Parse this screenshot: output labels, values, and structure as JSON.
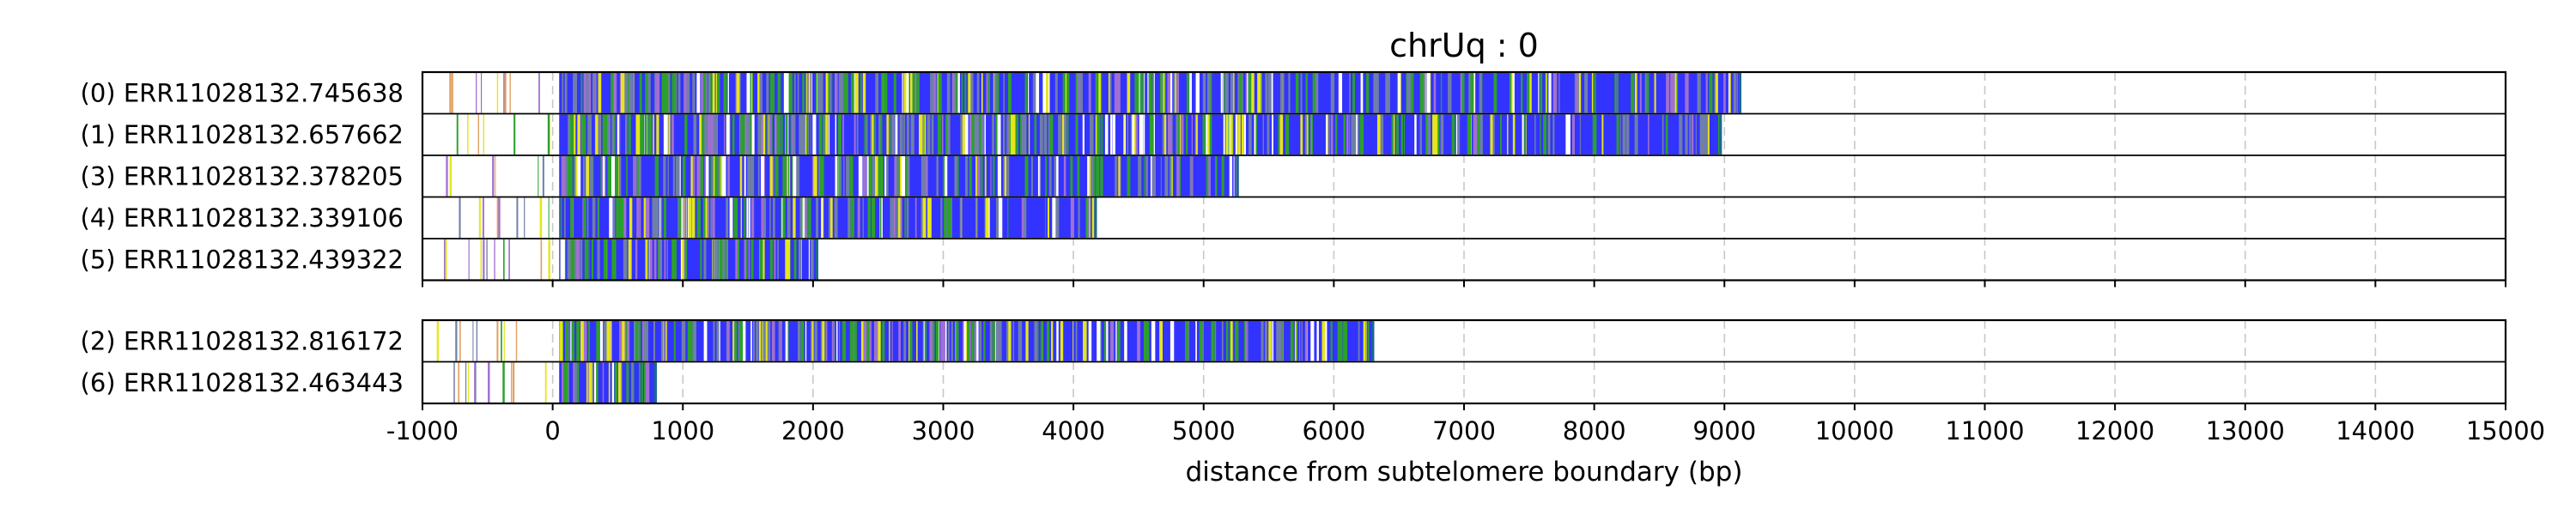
{
  "chart_data": {
    "type": "read-track",
    "title": "chrUq : 0",
    "xlabel": "distance from subtelomere boundary (bp)",
    "ylabel": "",
    "xlim": [
      -1000,
      15000
    ],
    "xticks": [
      -1000,
      0,
      1000,
      2000,
      3000,
      4000,
      5000,
      6000,
      7000,
      8000,
      9000,
      10000,
      11000,
      12000,
      13000,
      14000,
      15000
    ],
    "tick_labels": [
      "-1000",
      "0",
      "1000",
      "2000",
      "3000",
      "4000",
      "5000",
      "6000",
      "7000",
      "8000",
      "9000",
      "10000",
      "11000",
      "12000",
      "13000",
      "14000",
      "15000"
    ],
    "grid": "x-dashed",
    "colors": {
      "main": "#3333ff",
      "green": "#2ca02c",
      "yellow": "#e6e61a",
      "slate": "#6f7fa8",
      "purple": "#a070d0",
      "orange": "#e0a060"
    },
    "groups": [
      {
        "reads": [
          {
            "label": "(0) ERR11028132.745638",
            "start": 50,
            "end": 9130
          },
          {
            "label": "(1) ERR11028132.657662",
            "start": 50,
            "end": 8980
          },
          {
            "label": "(3) ERR11028132.378205",
            "start": 50,
            "end": 5270
          },
          {
            "label": "(4) ERR11028132.339106",
            "start": 50,
            "end": 4180
          },
          {
            "label": "(5) ERR11028132.439322",
            "start": 50,
            "end": 2040
          }
        ]
      },
      {
        "reads": [
          {
            "label": "(2) ERR11028132.816172",
            "start": 50,
            "end": 6310
          },
          {
            "label": "(6) ERR11028132.463443",
            "start": 50,
            "end": 800
          }
        ]
      }
    ]
  }
}
